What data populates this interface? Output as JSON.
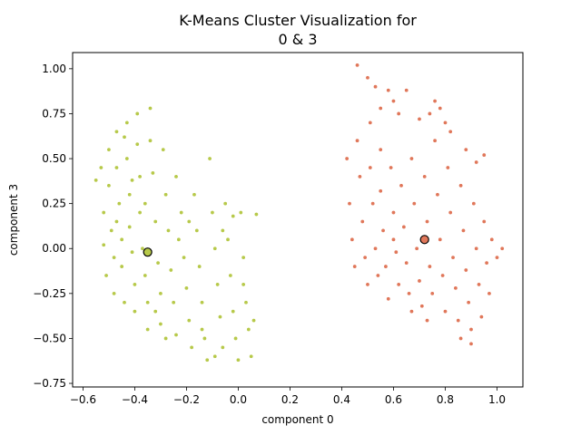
{
  "chart_data": {
    "type": "scatter",
    "title_line1": "K-Means Cluster Visualization for",
    "title_line2": "0 & 3",
    "xlabel": "component 0",
    "ylabel": "component 3",
    "xlim": [
      -0.64,
      1.1
    ],
    "ylim": [
      -0.77,
      1.09
    ],
    "xticks": [
      -0.6,
      -0.4,
      -0.2,
      0.0,
      0.2,
      0.4,
      0.6,
      0.8,
      1.0
    ],
    "xtick_labels": [
      "−0.6",
      "−0.4",
      "−0.2",
      "0.0",
      "0.2",
      "0.4",
      "0.6",
      "0.8",
      "1.0"
    ],
    "yticks": [
      -0.75,
      -0.5,
      -0.25,
      0.0,
      0.25,
      0.5,
      0.75,
      1.0
    ],
    "ytick_labels": [
      "−0.75",
      "−0.50",
      "−0.25",
      "0.00",
      "0.25",
      "0.50",
      "0.75",
      "1.00"
    ],
    "grid": false,
    "legend": "none",
    "colors": {
      "cluster_0": "#b7c94a",
      "cluster_1": "#e0775a"
    },
    "clusters": [
      {
        "color": "#b7c94a",
        "centroid": [
          -0.35,
          -0.02
        ],
        "points": [
          [
            -0.55,
            0.38
          ],
          [
            -0.53,
            0.45
          ],
          [
            -0.52,
            0.2
          ],
          [
            -0.52,
            0.02
          ],
          [
            -0.51,
            -0.15
          ],
          [
            -0.5,
            0.55
          ],
          [
            -0.5,
            0.35
          ],
          [
            -0.49,
            0.1
          ],
          [
            -0.48,
            -0.05
          ],
          [
            -0.48,
            -0.25
          ],
          [
            -0.47,
            0.65
          ],
          [
            -0.47,
            0.45
          ],
          [
            -0.46,
            0.25
          ],
          [
            -0.45,
            0.05
          ],
          [
            -0.45,
            -0.1
          ],
          [
            -0.44,
            -0.3
          ],
          [
            -0.43,
            0.7
          ],
          [
            -0.43,
            0.5
          ],
          [
            -0.42,
            0.3
          ],
          [
            -0.42,
            0.12
          ],
          [
            -0.41,
            -0.02
          ],
          [
            -0.4,
            -0.2
          ],
          [
            -0.4,
            -0.35
          ],
          [
            -0.39,
            0.75
          ],
          [
            -0.39,
            0.58
          ],
          [
            -0.38,
            0.4
          ],
          [
            -0.38,
            0.2
          ],
          [
            -0.37,
            0.0
          ],
          [
            -0.36,
            -0.15
          ],
          [
            -0.35,
            -0.3
          ],
          [
            -0.35,
            -0.45
          ],
          [
            -0.34,
            0.78
          ],
          [
            -0.34,
            0.6
          ],
          [
            -0.33,
            0.42
          ],
          [
            -0.32,
            0.15
          ],
          [
            -0.31,
            -0.08
          ],
          [
            -0.3,
            -0.25
          ],
          [
            -0.3,
            -0.42
          ],
          [
            -0.29,
            0.55
          ],
          [
            -0.28,
            0.3
          ],
          [
            -0.27,
            0.1
          ],
          [
            -0.26,
            -0.12
          ],
          [
            -0.25,
            -0.3
          ],
          [
            -0.24,
            -0.48
          ],
          [
            -0.24,
            0.4
          ],
          [
            -0.22,
            0.2
          ],
          [
            -0.21,
            -0.05
          ],
          [
            -0.2,
            -0.22
          ],
          [
            -0.19,
            -0.4
          ],
          [
            -0.18,
            -0.55
          ],
          [
            -0.17,
            0.3
          ],
          [
            -0.16,
            0.1
          ],
          [
            -0.15,
            -0.1
          ],
          [
            -0.14,
            -0.3
          ],
          [
            -0.13,
            -0.5
          ],
          [
            -0.12,
            -0.62
          ],
          [
            -0.11,
            0.5
          ],
          [
            -0.1,
            0.2
          ],
          [
            -0.09,
            0.0
          ],
          [
            -0.08,
            -0.2
          ],
          [
            -0.07,
            -0.38
          ],
          [
            -0.06,
            -0.55
          ],
          [
            -0.05,
            0.25
          ],
          [
            -0.04,
            0.05
          ],
          [
            -0.03,
            -0.15
          ],
          [
            -0.02,
            -0.35
          ],
          [
            -0.01,
            -0.5
          ],
          [
            0.0,
            -0.62
          ],
          [
            0.01,
            0.2
          ],
          [
            0.02,
            -0.05
          ],
          [
            0.03,
            -0.3
          ],
          [
            0.04,
            -0.45
          ],
          [
            0.05,
            -0.6
          ],
          [
            0.06,
            -0.4
          ],
          [
            0.07,
            0.19
          ],
          [
            -0.47,
            0.15
          ],
          [
            -0.44,
            0.62
          ],
          [
            -0.41,
            0.38
          ],
          [
            -0.36,
            0.25
          ],
          [
            -0.32,
            -0.35
          ],
          [
            -0.28,
            -0.5
          ],
          [
            -0.23,
            0.05
          ],
          [
            -0.19,
            0.15
          ],
          [
            -0.14,
            -0.45
          ],
          [
            -0.09,
            -0.6
          ],
          [
            -0.06,
            0.1
          ],
          [
            -0.02,
            0.18
          ],
          [
            0.02,
            -0.2
          ]
        ]
      },
      {
        "color": "#e0775a",
        "centroid": [
          0.72,
          0.05
        ],
        "points": [
          [
            0.42,
            0.5
          ],
          [
            0.43,
            0.25
          ],
          [
            0.44,
            0.05
          ],
          [
            0.45,
            -0.1
          ],
          [
            0.46,
            0.6
          ],
          [
            0.47,
            0.4
          ],
          [
            0.48,
            0.15
          ],
          [
            0.49,
            -0.05
          ],
          [
            0.5,
            -0.2
          ],
          [
            0.51,
            0.7
          ],
          [
            0.51,
            0.45
          ],
          [
            0.52,
            0.25
          ],
          [
            0.53,
            0.0
          ],
          [
            0.54,
            -0.15
          ],
          [
            0.55,
            0.55
          ],
          [
            0.55,
            0.32
          ],
          [
            0.56,
            0.1
          ],
          [
            0.57,
            -0.1
          ],
          [
            0.58,
            -0.28
          ],
          [
            0.59,
            0.45
          ],
          [
            0.6,
            0.2
          ],
          [
            0.61,
            -0.02
          ],
          [
            0.62,
            -0.2
          ],
          [
            0.63,
            0.35
          ],
          [
            0.64,
            0.12
          ],
          [
            0.65,
            -0.08
          ],
          [
            0.66,
            -0.25
          ],
          [
            0.67,
            0.5
          ],
          [
            0.68,
            0.25
          ],
          [
            0.69,
            0.0
          ],
          [
            0.7,
            -0.18
          ],
          [
            0.71,
            -0.32
          ],
          [
            0.72,
            0.4
          ],
          [
            0.73,
            0.15
          ],
          [
            0.74,
            -0.1
          ],
          [
            0.75,
            -0.25
          ],
          [
            0.76,
            0.6
          ],
          [
            0.77,
            0.3
          ],
          [
            0.78,
            0.05
          ],
          [
            0.79,
            -0.15
          ],
          [
            0.8,
            -0.35
          ],
          [
            0.81,
            0.45
          ],
          [
            0.82,
            0.2
          ],
          [
            0.83,
            -0.05
          ],
          [
            0.84,
            -0.22
          ],
          [
            0.85,
            -0.4
          ],
          [
            0.86,
            0.35
          ],
          [
            0.87,
            0.1
          ],
          [
            0.88,
            -0.12
          ],
          [
            0.89,
            -0.3
          ],
          [
            0.9,
            -0.45
          ],
          [
            0.91,
            0.25
          ],
          [
            0.92,
            0.0
          ],
          [
            0.93,
            -0.2
          ],
          [
            0.94,
            -0.38
          ],
          [
            0.95,
            0.15
          ],
          [
            0.96,
            -0.08
          ],
          [
            0.97,
            -0.25
          ],
          [
            0.98,
            0.05
          ],
          [
            1.0,
            -0.05
          ],
          [
            1.02,
            0.0
          ],
          [
            0.46,
            1.02
          ],
          [
            0.5,
            0.95
          ],
          [
            0.53,
            0.9
          ],
          [
            0.55,
            0.78
          ],
          [
            0.58,
            0.88
          ],
          [
            0.6,
            0.82
          ],
          [
            0.62,
            0.75
          ],
          [
            0.65,
            0.88
          ],
          [
            0.7,
            0.72
          ],
          [
            0.74,
            0.75
          ],
          [
            0.76,
            0.82
          ],
          [
            0.78,
            0.78
          ],
          [
            0.8,
            0.7
          ],
          [
            0.82,
            0.65
          ],
          [
            0.88,
            0.55
          ],
          [
            0.92,
            0.48
          ],
          [
            0.95,
            0.52
          ],
          [
            0.6,
            0.05
          ],
          [
            0.67,
            -0.35
          ],
          [
            0.73,
            -0.4
          ],
          [
            0.86,
            -0.5
          ],
          [
            0.9,
            -0.53
          ]
        ]
      }
    ]
  }
}
